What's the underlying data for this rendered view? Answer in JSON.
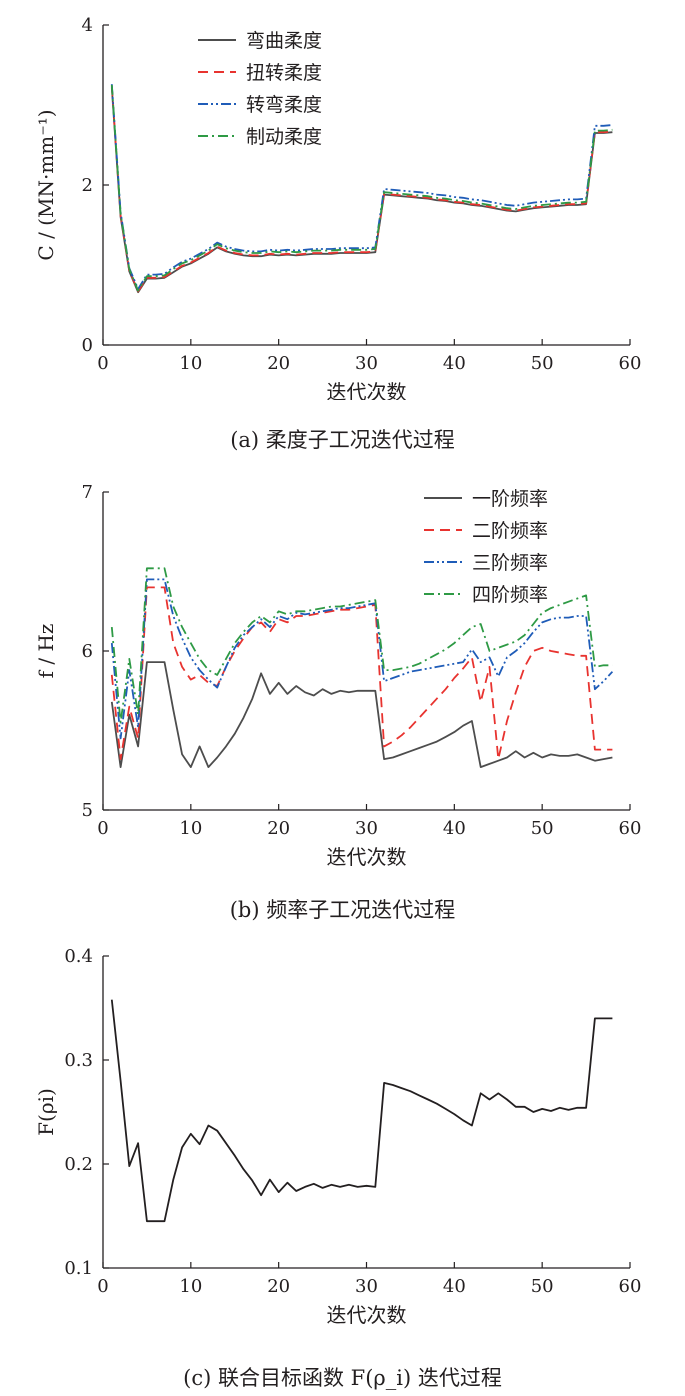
{
  "chart_data": [
    {
      "type": "line",
      "caption": "(a)  柔度子工况迭代过程",
      "xlabel": "迭代次数",
      "ylabel": "C / (MN·mm⁻¹)",
      "xlim": [
        0,
        60
      ],
      "ylim": [
        0,
        4
      ],
      "xticks": [
        0,
        10,
        20,
        30,
        40,
        50,
        60
      ],
      "yticks": [
        0,
        2,
        4
      ],
      "legend_position": "top-left",
      "x": [
        1,
        2,
        3,
        4,
        5,
        6,
        7,
        8,
        9,
        10,
        11,
        12,
        13,
        14,
        15,
        16,
        17,
        18,
        19,
        20,
        21,
        22,
        23,
        24,
        25,
        26,
        27,
        28,
        29,
        30,
        31,
        32,
        33,
        34,
        35,
        36,
        37,
        38,
        39,
        40,
        41,
        42,
        43,
        44,
        45,
        46,
        47,
        48,
        49,
        50,
        51,
        52,
        53,
        54,
        55,
        56,
        57,
        58
      ],
      "series": [
        {
          "name": "弯曲柔度",
          "color": "#4d4d4d",
          "dash": "solid",
          "values": [
            3.22,
            1.6,
            0.92,
            0.66,
            0.83,
            0.83,
            0.84,
            0.91,
            0.98,
            1.02,
            1.08,
            1.14,
            1.22,
            1.17,
            1.14,
            1.12,
            1.11,
            1.11,
            1.13,
            1.12,
            1.13,
            1.12,
            1.13,
            1.14,
            1.14,
            1.14,
            1.15,
            1.15,
            1.15,
            1.15,
            1.16,
            1.88,
            1.87,
            1.86,
            1.85,
            1.84,
            1.83,
            1.81,
            1.8,
            1.78,
            1.77,
            1.75,
            1.74,
            1.72,
            1.7,
            1.68,
            1.67,
            1.69,
            1.71,
            1.72,
            1.73,
            1.74,
            1.75,
            1.75,
            1.76,
            2.65,
            2.65,
            2.66
          ]
        },
        {
          "name": "扭转柔度",
          "color": "#e8332f",
          "dash": "dashed",
          "values": [
            3.24,
            1.62,
            0.93,
            0.67,
            0.84,
            0.84,
            0.85,
            0.92,
            0.99,
            1.03,
            1.09,
            1.15,
            1.23,
            1.18,
            1.15,
            1.13,
            1.12,
            1.12,
            1.14,
            1.13,
            1.14,
            1.13,
            1.14,
            1.15,
            1.15,
            1.15,
            1.16,
            1.16,
            1.16,
            1.16,
            1.17,
            1.89,
            1.88,
            1.87,
            1.86,
            1.85,
            1.84,
            1.82,
            1.81,
            1.79,
            1.78,
            1.76,
            1.75,
            1.73,
            1.71,
            1.69,
            1.68,
            1.7,
            1.72,
            1.73,
            1.74,
            1.75,
            1.76,
            1.76,
            1.77,
            2.66,
            2.66,
            2.67
          ]
        },
        {
          "name": "转弯柔度",
          "color": "#1f5cb8",
          "dash": "dashdotdot",
          "values": [
            3.26,
            1.66,
            0.96,
            0.7,
            0.88,
            0.88,
            0.89,
            0.97,
            1.04,
            1.08,
            1.14,
            1.2,
            1.28,
            1.23,
            1.2,
            1.18,
            1.17,
            1.17,
            1.19,
            1.18,
            1.19,
            1.18,
            1.19,
            1.2,
            1.2,
            1.2,
            1.21,
            1.21,
            1.21,
            1.21,
            1.22,
            1.95,
            1.94,
            1.93,
            1.92,
            1.91,
            1.9,
            1.88,
            1.87,
            1.85,
            1.84,
            1.82,
            1.81,
            1.79,
            1.77,
            1.75,
            1.74,
            1.76,
            1.78,
            1.79,
            1.8,
            1.81,
            1.82,
            1.82,
            1.83,
            2.74,
            2.74,
            2.75
          ]
        },
        {
          "name": "制动柔度",
          "color": "#2e9a45",
          "dash": "dashdot",
          "values": [
            3.25,
            1.64,
            0.95,
            0.68,
            0.86,
            0.86,
            0.87,
            0.95,
            1.02,
            1.06,
            1.12,
            1.18,
            1.26,
            1.21,
            1.18,
            1.16,
            1.15,
            1.15,
            1.17,
            1.16,
            1.17,
            1.16,
            1.17,
            1.18,
            1.18,
            1.18,
            1.19,
            1.19,
            1.19,
            1.19,
            1.2,
            1.91,
            1.9,
            1.89,
            1.88,
            1.87,
            1.86,
            1.84,
            1.83,
            1.81,
            1.8,
            1.78,
            1.77,
            1.75,
            1.73,
            1.71,
            1.7,
            1.72,
            1.74,
            1.75,
            1.76,
            1.77,
            1.78,
            1.78,
            1.79,
            2.68,
            2.68,
            2.69
          ]
        }
      ]
    },
    {
      "type": "line",
      "caption": "(b)  频率子工况迭代过程",
      "xlabel": "迭代次数",
      "ylabel": "f / Hz",
      "xlim": [
        0,
        60
      ],
      "ylim": [
        5,
        7
      ],
      "xticks": [
        0,
        10,
        20,
        30,
        40,
        50,
        60
      ],
      "yticks": [
        5,
        6,
        7
      ],
      "legend_position": "top-right",
      "x": [
        1,
        2,
        3,
        4,
        5,
        6,
        7,
        8,
        9,
        10,
        11,
        12,
        13,
        14,
        15,
        16,
        17,
        18,
        19,
        20,
        21,
        22,
        23,
        24,
        25,
        26,
        27,
        28,
        29,
        30,
        31,
        32,
        33,
        34,
        35,
        36,
        37,
        38,
        39,
        40,
        41,
        42,
        43,
        44,
        45,
        46,
        47,
        48,
        49,
        50,
        51,
        52,
        53,
        54,
        55,
        56,
        57,
        58
      ],
      "series": [
        {
          "name": "一阶频率",
          "color": "#4d4d4d",
          "dash": "solid",
          "values": [
            5.68,
            5.27,
            5.6,
            5.4,
            5.93,
            5.93,
            5.93,
            5.63,
            5.35,
            5.27,
            5.4,
            5.27,
            5.33,
            5.4,
            5.48,
            5.58,
            5.7,
            5.86,
            5.73,
            5.8,
            5.73,
            5.78,
            5.74,
            5.72,
            5.76,
            5.73,
            5.75,
            5.74,
            5.75,
            5.75,
            5.75,
            5.32,
            5.33,
            5.35,
            5.37,
            5.39,
            5.41,
            5.43,
            5.46,
            5.49,
            5.53,
            5.56,
            5.27,
            5.29,
            5.31,
            5.33,
            5.37,
            5.33,
            5.36,
            5.33,
            5.35,
            5.34,
            5.34,
            5.35,
            5.33,
            5.31,
            5.32,
            5.33
          ]
        },
        {
          "name": "二阶频率",
          "color": "#e8332f",
          "dash": "dashed",
          "values": [
            5.85,
            5.32,
            5.65,
            5.45,
            6.4,
            6.4,
            6.4,
            6.05,
            5.9,
            5.82,
            5.85,
            5.8,
            5.78,
            5.9,
            6.0,
            6.08,
            6.15,
            6.18,
            6.12,
            6.2,
            6.18,
            6.22,
            6.22,
            6.23,
            6.24,
            6.25,
            6.26,
            6.26,
            6.27,
            6.28,
            6.29,
            5.4,
            5.43,
            5.47,
            5.52,
            5.58,
            5.64,
            5.7,
            5.76,
            5.83,
            5.89,
            5.96,
            5.68,
            5.9,
            5.32,
            5.56,
            5.74,
            5.9,
            6.0,
            6.02,
            6.0,
            5.99,
            5.98,
            5.97,
            5.97,
            5.38,
            5.38,
            5.38
          ]
        },
        {
          "name": "三阶频率",
          "color": "#1f5cb8",
          "dash": "dashdotdot",
          "values": [
            6.05,
            5.45,
            5.88,
            5.52,
            6.45,
            6.45,
            6.45,
            6.22,
            6.08,
            5.96,
            5.88,
            5.82,
            5.77,
            5.9,
            6.02,
            6.1,
            6.15,
            6.2,
            6.15,
            6.22,
            6.2,
            6.24,
            6.23,
            6.24,
            6.25,
            6.26,
            6.27,
            6.27,
            6.28,
            6.29,
            6.3,
            5.81,
            5.83,
            5.85,
            5.87,
            5.88,
            5.89,
            5.9,
            5.91,
            5.92,
            5.93,
            6.01,
            5.93,
            5.96,
            5.84,
            5.96,
            6.0,
            6.05,
            6.12,
            6.18,
            6.2,
            6.21,
            6.21,
            6.22,
            6.22,
            5.76,
            5.81,
            5.87
          ]
        },
        {
          "name": "四阶频率",
          "color": "#2e9a45",
          "dash": "dashdot",
          "values": [
            6.15,
            5.55,
            5.95,
            5.6,
            6.52,
            6.52,
            6.52,
            6.28,
            6.15,
            6.05,
            5.95,
            5.88,
            5.85,
            5.95,
            6.05,
            6.12,
            6.18,
            6.22,
            6.18,
            6.25,
            6.23,
            6.25,
            6.25,
            6.26,
            6.27,
            6.28,
            6.28,
            6.29,
            6.3,
            6.31,
            6.32,
            5.88,
            5.88,
            5.89,
            5.9,
            5.92,
            5.95,
            5.98,
            6.01,
            6.05,
            6.1,
            6.15,
            6.17,
            6.0,
            6.02,
            6.04,
            6.06,
            6.1,
            6.17,
            6.24,
            6.27,
            6.29,
            6.31,
            6.33,
            6.35,
            5.9,
            5.91,
            5.91
          ]
        }
      ]
    },
    {
      "type": "line",
      "caption": "(c)  联合目标函数 F(ρ_i) 迭代过程",
      "xlabel": "迭代次数",
      "ylabel": "F(ρi)",
      "xlim": [
        0,
        60
      ],
      "ylim": [
        0.1,
        0.4
      ],
      "xticks": [
        0,
        10,
        20,
        30,
        40,
        50,
        60
      ],
      "yticks": [
        0.1,
        0.2,
        0.3,
        0.4
      ],
      "x": [
        1,
        2,
        3,
        4,
        5,
        6,
        7,
        8,
        9,
        10,
        11,
        12,
        13,
        14,
        15,
        16,
        17,
        18,
        19,
        20,
        21,
        22,
        23,
        24,
        25,
        26,
        27,
        28,
        29,
        30,
        31,
        32,
        33,
        34,
        35,
        36,
        37,
        38,
        39,
        40,
        41,
        42,
        43,
        44,
        45,
        46,
        47,
        48,
        49,
        50,
        51,
        52,
        53,
        54,
        55,
        56,
        57,
        58
      ],
      "series": [
        {
          "name": "",
          "color": "#231f20",
          "dash": "solid",
          "values": [
            0.358,
            0.28,
            0.198,
            0.22,
            0.145,
            0.145,
            0.145,
            0.185,
            0.216,
            0.229,
            0.219,
            0.237,
            0.232,
            0.22,
            0.208,
            0.195,
            0.184,
            0.17,
            0.185,
            0.173,
            0.182,
            0.174,
            0.178,
            0.181,
            0.177,
            0.18,
            0.178,
            0.18,
            0.178,
            0.179,
            0.178,
            0.278,
            0.276,
            0.273,
            0.27,
            0.266,
            0.262,
            0.258,
            0.253,
            0.248,
            0.242,
            0.237,
            0.268,
            0.262,
            0.268,
            0.262,
            0.255,
            0.255,
            0.25,
            0.253,
            0.251,
            0.254,
            0.252,
            0.254,
            0.254,
            0.34,
            0.34,
            0.34
          ]
        }
      ]
    }
  ]
}
